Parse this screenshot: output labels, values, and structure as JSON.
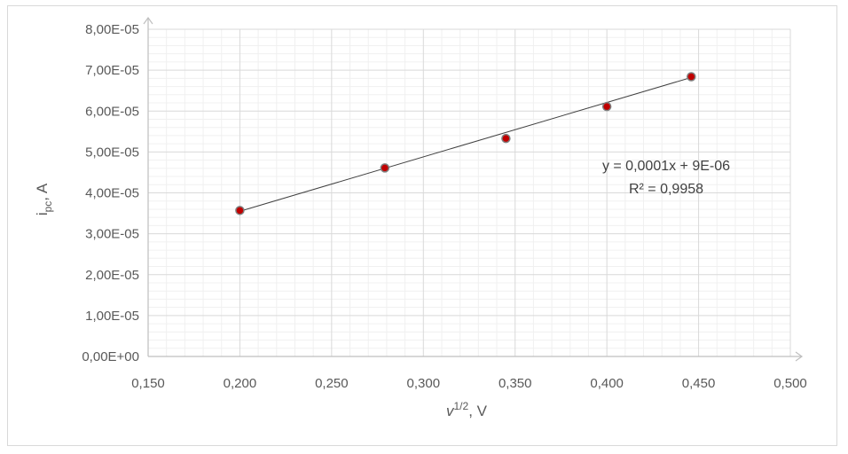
{
  "chart_data": {
    "type": "scatter",
    "x": [
      0.2,
      0.279,
      0.345,
      0.4,
      0.446
    ],
    "y": [
      3.57e-05,
      4.61e-05,
      5.33e-05,
      6.11e-05,
      6.84e-05
    ],
    "x_ticks": [
      "0,150",
      "0,200",
      "0,250",
      "0,300",
      "0,350",
      "0,400",
      "0,450",
      "0,500"
    ],
    "y_ticks": [
      "0,00E+00",
      "1,00E-05",
      "2,00E-05",
      "3,00E-05",
      "4,00E-05",
      "5,00E-05",
      "6,00E-05",
      "7,00E-05",
      "8,00E-05"
    ],
    "xlim": [
      0.15,
      0.5
    ],
    "ylim": [
      0,
      8e-05
    ],
    "xlabel": {
      "main": "v",
      "sup": "1/2",
      "suffix": ", V"
    },
    "ylabel": {
      "main": "i",
      "sub": "pc",
      "suffix": ", A"
    },
    "trendline": {
      "x": [
        0.2,
        0.446
      ],
      "slope": 0.000133,
      "intercept": 8.9e-06
    },
    "annotations": {
      "equation": "y = 0,0001x + 9E-06",
      "r_squared": "R² = 0,9958"
    },
    "grid": "major-and-minor",
    "colors": {
      "marker_fill": "#c00000",
      "marker_stroke": "#7f7f7f",
      "trendline": "#404040",
      "major_grid": "#d9d9d9",
      "minor_grid": "#f0f0f0",
      "axis": "#bfbfbf"
    }
  }
}
